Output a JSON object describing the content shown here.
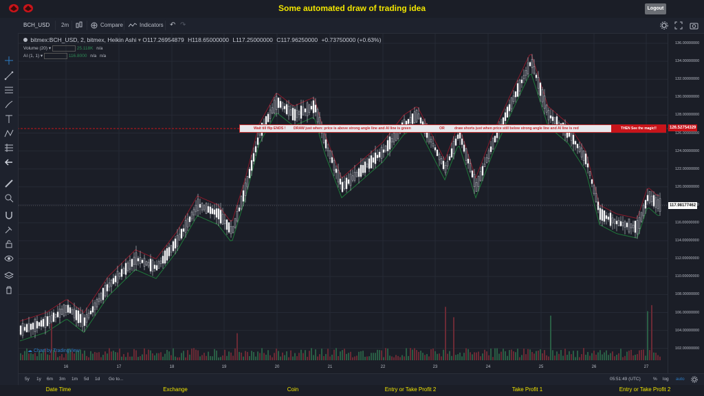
{
  "header": {
    "title": "Some automated draw of trading idea",
    "logout_label": "Logout"
  },
  "toolbar": {
    "symbol": "BCH_USD",
    "interval": "2m",
    "compare_label": "Compare",
    "indicators_label": "Indicators"
  },
  "legend": {
    "main": "bitmex:BCH_USD, 2, bitmex, Heikin Ashi",
    "open": "O117.26954879",
    "high": "H118.65000000",
    "low": "L117.25000000",
    "close": "C117.96250000",
    "change": "+0.73750000 (+0.63%)",
    "volume_label": "Volume (20)",
    "volume_value": "25.118K",
    "volume_na": "n/a",
    "ai_label": "AI (1, 1)",
    "ai_value": "116.8000",
    "ai_na1": "n/a",
    "ai_na2": "n/a"
  },
  "banner": {
    "part1": "Wait till flip ENDS !",
    "part2": "DRAW just when:  price is above strong angle line and AI line is green",
    "part3": "OR",
    "part4": "draw shorts just when price still below strong angle line and AI line is red",
    "magic": "THEN See the magic!!"
  },
  "price_axis": {
    "ticks": [
      "136.00000000",
      "134.00000000",
      "132.00000000",
      "130.00000000",
      "128.00000000",
      "126.00000000",
      "124.00000000",
      "122.00000000",
      "120.00000000",
      "118.00000000",
      "116.00000000",
      "114.00000000",
      "112.00000000",
      "110.00000000",
      "108.00000000",
      "106.00000000",
      "104.00000000",
      "102.00000000"
    ],
    "marker_price": "126.52754329",
    "last_price": "117.98177462"
  },
  "time_axis": {
    "labels": [
      "16",
      "17",
      "18",
      "19",
      "20",
      "21",
      "22",
      "23",
      "24",
      "25",
      "26",
      "27"
    ]
  },
  "watermark": "Chart by TradingView",
  "bottombar": {
    "ranges": [
      "5y",
      "1y",
      "6m",
      "3m",
      "1m",
      "5d",
      "1d"
    ],
    "goto_label": "Go to...",
    "clock": "05:51:49 (UTC)",
    "percent": "%",
    "log": "log",
    "auto": "auto"
  },
  "footer": {
    "items": [
      "Date Time",
      "Exchange",
      "Coin",
      "Entry or Take Profit 2",
      "Take Profit 1",
      "Entry or Take Profit 2"
    ]
  },
  "colors": {
    "accent_yellow": "#f2e600",
    "bull": "#2e8b57",
    "bear": "#b2223b",
    "banner_red": "#c8141a",
    "tv_blue": "#2d7fc8"
  },
  "icons": [
    "crosshair-icon",
    "trendline-icon",
    "fib-icon",
    "brush-icon",
    "text-icon",
    "pattern-icon",
    "forecast-icon",
    "arrow-icon",
    "ruler-icon",
    "zoom-icon",
    "magnet-icon",
    "lock-icon",
    "eye-icon",
    "layers-icon",
    "trash-icon",
    "settings-icon",
    "fullscreen-icon",
    "camera-icon",
    "gear-icon"
  ]
}
